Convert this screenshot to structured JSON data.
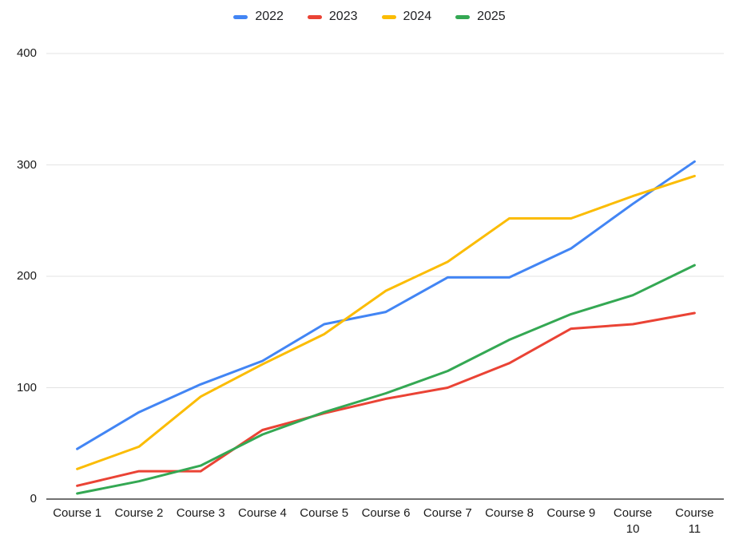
{
  "chart_data": {
    "type": "line",
    "categories": [
      "Course 1",
      "Course 2",
      "Course 3",
      "Course 4",
      "Course 5",
      "Course 6",
      "Course 7",
      "Course 8",
      "Course 9",
      "Course 10",
      "Course 11"
    ],
    "series": [
      {
        "name": "2022",
        "color": "#4285F4",
        "values": [
          45,
          78,
          103,
          124,
          157,
          168,
          199,
          199,
          225,
          265,
          303
        ]
      },
      {
        "name": "2023",
        "color": "#EA4335",
        "values": [
          12,
          25,
          25,
          62,
          77,
          90,
          100,
          122,
          153,
          157,
          167
        ]
      },
      {
        "name": "2024",
        "color": "#FBBC04",
        "values": [
          27,
          47,
          92,
          121,
          148,
          187,
          213,
          252,
          252,
          272,
          290
        ]
      },
      {
        "name": "2025",
        "color": "#34A853",
        "values": [
          5,
          16,
          30,
          58,
          78,
          95,
          115,
          143,
          166,
          183,
          210
        ]
      }
    ],
    "ylim": [
      0,
      400
    ],
    "yticks": [
      0,
      100,
      200,
      300,
      400
    ],
    "grid": true,
    "legend_position": "top"
  },
  "colors": {
    "background": "#ffffff",
    "gridline": "#e3e3e3",
    "axis_line": "#424242",
    "text": "#1a1a1a",
    "legend_text": "#202124"
  }
}
